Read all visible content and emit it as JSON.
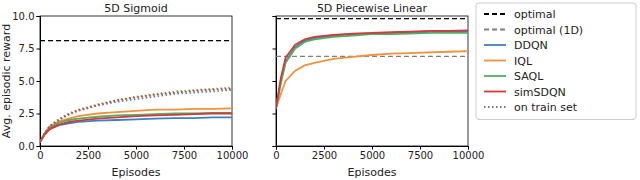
{
  "chart_data": [
    {
      "type": "line",
      "title": "5D Sigmoid",
      "x_label": "Episodes",
      "y_label": "Avg. episodic reward",
      "x": [
        0,
        250,
        500,
        1000,
        1500,
        2000,
        3000,
        4000,
        5000,
        6000,
        7000,
        8000,
        9000,
        10000
      ],
      "xlim": [
        0,
        10000
      ],
      "xticks": [
        0,
        2500,
        5000,
        7500,
        10000
      ],
      "ylim": [
        0,
        10
      ],
      "yticks": [
        {
          "value": 0,
          "label": "0.0"
        },
        2.5,
        {
          "value": 5,
          "label": "5.0"
        },
        7.5,
        {
          "value": 10,
          "label": "10.0"
        }
      ],
      "hlines": [
        {
          "value": 8.1,
          "color": "#000000",
          "line_style": "dashed"
        }
      ],
      "train_legend": "on train set",
      "series": [
        {
          "name": "DDQN",
          "color": "#3b82c4",
          "line_style": "solid",
          "values": [
            0.3,
            0.9,
            1.3,
            1.6,
            1.75,
            1.85,
            1.95,
            2.0,
            2.05,
            2.1,
            2.15,
            2.15,
            2.2,
            2.2
          ]
        },
        {
          "name": "IQL",
          "color": "#f0913c",
          "line_style": "solid",
          "values": [
            0.3,
            1.0,
            1.5,
            1.9,
            2.1,
            2.3,
            2.5,
            2.6,
            2.7,
            2.8,
            2.8,
            2.85,
            2.85,
            2.9
          ]
        },
        {
          "name": "SAQL",
          "color": "#4fb062",
          "line_style": "solid",
          "values": [
            0.3,
            1.0,
            1.4,
            1.8,
            2.0,
            2.1,
            2.25,
            2.35,
            2.4,
            2.45,
            2.5,
            2.5,
            2.55,
            2.55
          ]
        },
        {
          "name": "simSDQN",
          "color": "#d8373a",
          "line_style": "solid",
          "values": [
            0.3,
            0.9,
            1.3,
            1.65,
            1.85,
            1.95,
            2.1,
            2.2,
            2.3,
            2.35,
            2.4,
            2.45,
            2.5,
            2.5
          ]
        },
        {
          "color": "#3b82c4",
          "line_style": "dotted",
          "values": [
            0.3,
            1.0,
            1.5,
            2.0,
            2.4,
            2.7,
            3.1,
            3.4,
            3.6,
            3.8,
            4.0,
            4.1,
            4.2,
            4.3
          ]
        },
        {
          "color": "#f0913c",
          "line_style": "dotted",
          "values": [
            0.3,
            1.0,
            1.5,
            2.0,
            2.4,
            2.75,
            3.15,
            3.5,
            3.7,
            3.9,
            4.1,
            4.2,
            4.3,
            4.4
          ]
        },
        {
          "color": "#4fb062",
          "line_style": "dotted",
          "values": [
            0.3,
            1.0,
            1.55,
            2.1,
            2.5,
            2.8,
            3.2,
            3.55,
            3.8,
            4.0,
            4.2,
            4.3,
            4.4,
            4.5
          ]
        },
        {
          "color": "#d8373a",
          "line_style": "dotted",
          "values": [
            0.3,
            1.0,
            1.5,
            2.05,
            2.45,
            2.75,
            3.15,
            3.5,
            3.75,
            3.95,
            4.1,
            4.25,
            4.35,
            4.4
          ]
        }
      ]
    },
    {
      "type": "line",
      "title": "5D Piecewise Linear",
      "x_label": "Episodes",
      "tick_labels": "x",
      "legend": "outside right",
      "x": [
        0,
        250,
        500,
        1000,
        1500,
        2000,
        3000,
        4000,
        5000,
        6000,
        7000,
        8000,
        9000,
        10000
      ],
      "xlim": [
        0,
        10000
      ],
      "xticks": [
        0,
        2500,
        5000,
        7500,
        10000
      ],
      "ylim": [
        0,
        10
      ],
      "yticks": [
        0,
        2.5,
        5,
        7.5,
        10
      ],
      "hlines": [
        {
          "name": "optimal",
          "value": 9.8,
          "color": "#000000",
          "line_style": "dashed"
        },
        {
          "name": "optimal (1D)",
          "value": 6.9,
          "color": "#808080",
          "line_style": "dashed"
        }
      ],
      "series": [
        {
          "name": "DDQN",
          "color": "#3b82c4",
          "line_style": "solid",
          "values": [
            2.9,
            5.0,
            6.5,
            7.6,
            8.1,
            8.3,
            8.5,
            8.6,
            8.65,
            8.7,
            8.75,
            8.75,
            8.8,
            8.8
          ]
        },
        {
          "name": "IQL",
          "color": "#f0913c",
          "line_style": "solid",
          "values": [
            2.9,
            4.0,
            5.0,
            5.8,
            6.2,
            6.4,
            6.7,
            6.85,
            7.0,
            7.1,
            7.15,
            7.2,
            7.25,
            7.3
          ]
        },
        {
          "name": "SAQL",
          "color": "#4fb062",
          "line_style": "solid",
          "values": [
            2.9,
            4.8,
            6.4,
            7.5,
            8.0,
            8.2,
            8.4,
            8.5,
            8.6,
            8.6,
            8.65,
            8.7,
            8.7,
            8.7
          ]
        },
        {
          "name": "simSDQN",
          "color": "#d8373a",
          "line_style": "solid",
          "values": [
            2.9,
            5.2,
            6.8,
            7.8,
            8.2,
            8.4,
            8.55,
            8.65,
            8.7,
            8.75,
            8.8,
            8.85,
            8.85,
            8.9
          ]
        }
      ]
    }
  ]
}
